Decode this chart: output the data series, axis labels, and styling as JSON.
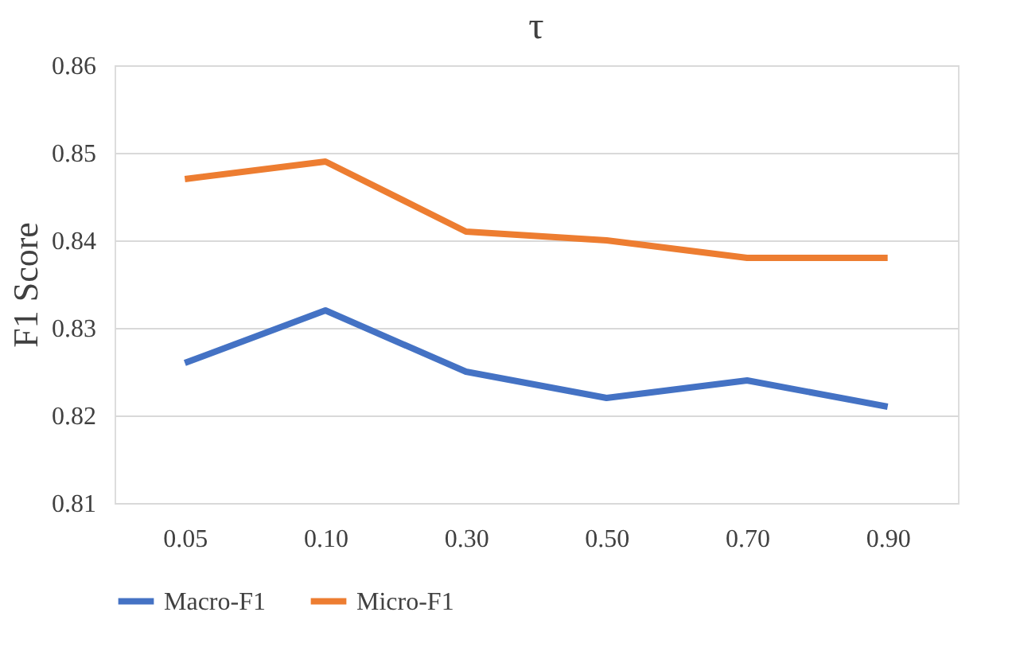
{
  "chart_data": {
    "type": "line",
    "title": "τ",
    "ylabel": "F1 Score",
    "categories": [
      "0.05",
      "0.10",
      "0.30",
      "0.50",
      "0.70",
      "0.90"
    ],
    "series": [
      {
        "name": "Macro-F1",
        "color": "#4472c4",
        "values": [
          0.826,
          0.832,
          0.825,
          0.822,
          0.824,
          0.821
        ]
      },
      {
        "name": "Micro-F1",
        "color": "#ed7d31",
        "values": [
          0.847,
          0.849,
          0.841,
          0.84,
          0.838,
          0.838
        ]
      }
    ],
    "ylim": [
      0.81,
      0.86
    ],
    "yticks": [
      0.81,
      0.82,
      0.83,
      0.84,
      0.85,
      0.86
    ],
    "grid": "y",
    "legend": "bottom",
    "marker": "none",
    "line_style": "solid"
  }
}
